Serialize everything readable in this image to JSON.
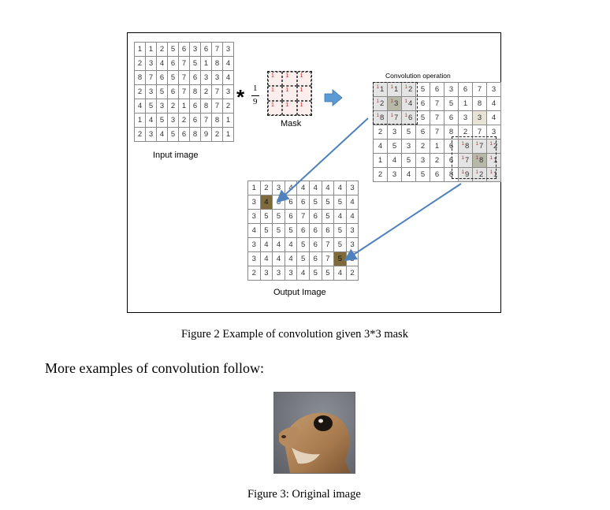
{
  "figure2": {
    "input_label": "Input image",
    "input_matrix": [
      [
        1,
        1,
        2,
        5,
        6,
        3,
        6,
        7,
        3
      ],
      [
        2,
        3,
        4,
        6,
        7,
        5,
        1,
        8,
        4
      ],
      [
        8,
        7,
        6,
        5,
        7,
        6,
        3,
        3,
        4
      ],
      [
        2,
        3,
        5,
        6,
        7,
        8,
        2,
        7,
        3
      ],
      [
        4,
        5,
        3,
        2,
        1,
        6,
        8,
        7,
        2
      ],
      [
        1,
        4,
        5,
        3,
        2,
        6,
        7,
        8,
        1
      ],
      [
        2,
        3,
        4,
        5,
        6,
        8,
        9,
        2,
        1
      ]
    ],
    "operator_symbol": "*",
    "fraction_numerator": "1",
    "fraction_denominator": "9",
    "mask_label": "Mask",
    "mask_weights": [
      "1",
      "1",
      "1",
      "1",
      "1",
      "1",
      "1",
      "1",
      "1"
    ],
    "convolution_label": "Convolution operation",
    "convolution_matrix": [
      [
        "1",
        "1",
        "2",
        "5",
        "6",
        "3",
        "6",
        "7",
        "3"
      ],
      [
        "2",
        "3",
        "4",
        "6",
        "7",
        "5",
        "1",
        "8",
        "4"
      ],
      [
        "8",
        "7",
        "6",
        "5",
        "7",
        "6",
        "3",
        "3",
        "4"
      ],
      [
        "2",
        "3",
        "5",
        "6",
        "7",
        "8",
        "2",
        "7",
        "3"
      ],
      [
        "4",
        "5",
        "3",
        "2",
        "1",
        "6",
        "8",
        "7",
        "2"
      ],
      [
        "1",
        "4",
        "5",
        "3",
        "2",
        "6",
        "7",
        "8",
        "1"
      ],
      [
        "2",
        "3",
        "4",
        "5",
        "6",
        "8",
        "9",
        "2",
        "1"
      ]
    ],
    "output_label": "Output Image",
    "output_matrix": [
      [
        1,
        2,
        3,
        4,
        4,
        4,
        4,
        4,
        3
      ],
      [
        3,
        4,
        5,
        6,
        6,
        5,
        5,
        5,
        4
      ],
      [
        3,
        5,
        5,
        6,
        7,
        6,
        5,
        4,
        4
      ],
      [
        4,
        5,
        5,
        5,
        6,
        6,
        6,
        5,
        3
      ],
      [
        3,
        4,
        4,
        4,
        5,
        6,
        7,
        5,
        3
      ],
      [
        3,
        4,
        4,
        4,
        5,
        6,
        7,
        5,
        3
      ],
      [
        2,
        3,
        3,
        3,
        4,
        5,
        5,
        4,
        2
      ]
    ],
    "caption": "Figure 2 Example of convolution given 3*3 mask"
  },
  "body_text": "More examples of convolution follow:",
  "figure3": {
    "caption": "Figure 3: Original image"
  },
  "colors": {
    "highlight": "#7e6a3a",
    "arrow": "#4f81bd",
    "mask_fill": "#fdeeee",
    "weight_text": "#cc2222"
  }
}
